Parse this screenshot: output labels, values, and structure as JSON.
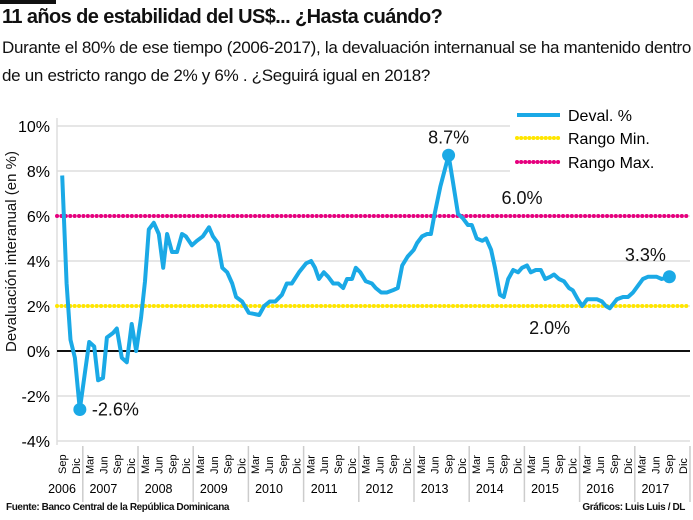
{
  "header": {
    "title": "11 años de estabilidad del US$... ¿Hasta cuándo?",
    "subtitle": "Durante el 80% de ese tiempo (2006-2017), la devaluación internanual se ha mantenido dentro de un estricto rango de 2% y 6% . ¿Seguirá igual en 2018?"
  },
  "footer": {
    "source": "Fuente: Banco Central de la República Dominicana",
    "credit": "Gráficos: Luis Luis / DL"
  },
  "colors": {
    "series": "#1aa9e6",
    "min": "#ffe600",
    "max": "#e6007e",
    "zero": "#111111",
    "grid": "#dddddd"
  },
  "chart_data": {
    "type": "line",
    "title": "",
    "ylabel": "Devaluación interanual (en %)",
    "xlabel": "",
    "ylim": [
      -4,
      10
    ],
    "yticks": [
      10,
      8,
      6,
      4,
      2,
      0,
      -2,
      -4
    ],
    "ytick_labels": [
      "10%",
      "8%",
      "6%",
      "4%",
      "2%",
      "0%",
      "-2%",
      "-4%"
    ],
    "grid": true,
    "legend_position": "top-right",
    "x_tick_labels": [
      "Sep",
      "Dic",
      "Mar",
      "Jun",
      "Sep",
      "Dic",
      "Mar",
      "Jun",
      "Sep",
      "Dic",
      "Mar",
      "Jun",
      "Sep",
      "Dic",
      "Mar",
      "Jun",
      "Sep",
      "Dic",
      "Mar",
      "Jun",
      "Sep",
      "Dic",
      "Mar",
      "Jun",
      "Sep",
      "Dic",
      "Mar",
      "Jun",
      "Sep",
      "Dic",
      "Mar",
      "Jun",
      "Sep",
      "Dic",
      "Mar",
      "Jun",
      "Sep",
      "Dic",
      "Mar",
      "Jun",
      "Sep",
      "Dic",
      "Mar",
      "Jun",
      "Sep",
      "Dic"
    ],
    "year_labels": [
      "2006",
      "2007",
      "2008",
      "2009",
      "2010",
      "2011",
      "2012",
      "2013",
      "2014",
      "2015",
      "2016",
      "2017"
    ],
    "series": [
      {
        "name": "Deval. %",
        "points": [
          [
            2006.67,
            7.8
          ],
          [
            2006.75,
            3.0
          ],
          [
            2006.82,
            0.5
          ],
          [
            2006.9,
            -0.3
          ],
          [
            2006.99,
            -2.6
          ],
          [
            2007.16,
            0.4
          ],
          [
            2007.25,
            0.2
          ],
          [
            2007.32,
            -1.3
          ],
          [
            2007.41,
            -1.2
          ],
          [
            2007.48,
            0.6
          ],
          [
            2007.59,
            0.8
          ],
          [
            2007.66,
            1.0
          ],
          [
            2007.75,
            -0.3
          ],
          [
            2007.84,
            -0.5
          ],
          [
            2007.93,
            1.2
          ],
          [
            2008.01,
            0.0
          ],
          [
            2008.1,
            1.5
          ],
          [
            2008.17,
            3.1
          ],
          [
            2008.24,
            5.4
          ],
          [
            2008.33,
            5.7
          ],
          [
            2008.42,
            5.2
          ],
          [
            2008.5,
            3.7
          ],
          [
            2008.57,
            5.2
          ],
          [
            2008.66,
            4.4
          ],
          [
            2008.75,
            4.4
          ],
          [
            2008.84,
            5.2
          ],
          [
            2008.91,
            5.1
          ],
          [
            2009.02,
            4.7
          ],
          [
            2009.11,
            4.9
          ],
          [
            2009.22,
            5.1
          ],
          [
            2009.33,
            5.5
          ],
          [
            2009.4,
            5.1
          ],
          [
            2009.49,
            4.8
          ],
          [
            2009.57,
            3.7
          ],
          [
            2009.66,
            3.5
          ],
          [
            2009.75,
            3.0
          ],
          [
            2009.82,
            2.4
          ],
          [
            2009.93,
            2.2
          ],
          [
            2010.05,
            1.7
          ],
          [
            2010.24,
            1.6
          ],
          [
            2010.33,
            2.0
          ],
          [
            2010.43,
            2.2
          ],
          [
            2010.53,
            2.2
          ],
          [
            2010.65,
            2.5
          ],
          [
            2010.74,
            3.0
          ],
          [
            2010.83,
            3.0
          ],
          [
            2010.96,
            3.5
          ],
          [
            2011.09,
            3.9
          ],
          [
            2011.18,
            4.0
          ],
          [
            2011.25,
            3.7
          ],
          [
            2011.32,
            3.2
          ],
          [
            2011.41,
            3.5
          ],
          [
            2011.49,
            3.3
          ],
          [
            2011.58,
            3.0
          ],
          [
            2011.67,
            3.0
          ],
          [
            2011.76,
            2.8
          ],
          [
            2011.83,
            3.2
          ],
          [
            2011.92,
            3.2
          ],
          [
            2011.99,
            3.7
          ],
          [
            2012.07,
            3.5
          ],
          [
            2012.17,
            3.1
          ],
          [
            2012.28,
            3.0
          ],
          [
            2012.35,
            2.8
          ],
          [
            2012.45,
            2.6
          ],
          [
            2012.55,
            2.6
          ],
          [
            2012.66,
            2.7
          ],
          [
            2012.75,
            2.8
          ],
          [
            2012.83,
            3.8
          ],
          [
            2012.93,
            4.2
          ],
          [
            2013.04,
            4.5
          ],
          [
            2013.1,
            4.8
          ],
          [
            2013.19,
            5.1
          ],
          [
            2013.28,
            5.2
          ],
          [
            2013.35,
            5.2
          ],
          [
            2013.41,
            6.0
          ],
          [
            2013.52,
            7.3
          ],
          [
            2013.67,
            8.7
          ],
          [
            2013.75,
            7.5
          ],
          [
            2013.84,
            6.1
          ],
          [
            2013.93,
            5.9
          ],
          [
            2014.02,
            5.6
          ],
          [
            2014.09,
            5.6
          ],
          [
            2014.18,
            5.0
          ],
          [
            2014.28,
            4.9
          ],
          [
            2014.35,
            5.0
          ],
          [
            2014.44,
            4.5
          ],
          [
            2014.51,
            3.7
          ],
          [
            2014.6,
            2.5
          ],
          [
            2014.67,
            2.4
          ],
          [
            2014.75,
            3.2
          ],
          [
            2014.84,
            3.6
          ],
          [
            2014.93,
            3.5
          ],
          [
            2015.0,
            3.7
          ],
          [
            2015.09,
            3.8
          ],
          [
            2015.16,
            3.5
          ],
          [
            2015.25,
            3.6
          ],
          [
            2015.34,
            3.6
          ],
          [
            2015.42,
            3.2
          ],
          [
            2015.51,
            3.3
          ],
          [
            2015.58,
            3.4
          ],
          [
            2015.67,
            3.2
          ],
          [
            2015.76,
            3.1
          ],
          [
            2015.85,
            2.8
          ],
          [
            2015.92,
            2.7
          ],
          [
            2016.01,
            2.3
          ],
          [
            2016.09,
            2.0
          ],
          [
            2016.18,
            2.3
          ],
          [
            2016.27,
            2.3
          ],
          [
            2016.36,
            2.3
          ],
          [
            2016.45,
            2.2
          ],
          [
            2016.52,
            2.0
          ],
          [
            2016.59,
            1.9
          ],
          [
            2016.72,
            2.3
          ],
          [
            2016.83,
            2.4
          ],
          [
            2016.92,
            2.4
          ],
          [
            2017.01,
            2.6
          ],
          [
            2017.1,
            2.9
          ],
          [
            2017.19,
            3.2
          ],
          [
            2017.28,
            3.3
          ],
          [
            2017.44,
            3.3
          ],
          [
            2017.53,
            3.2
          ],
          [
            2017.67,
            3.3
          ]
        ]
      },
      {
        "name": "Rango Min.",
        "value": 2.0
      },
      {
        "name": "Rango Max.",
        "value": 6.0
      }
    ],
    "annotations": [
      {
        "text": "8.7%",
        "x": 2013.67,
        "y": 8.7
      },
      {
        "text": "-2.6%",
        "x": 2006.99,
        "y": -2.6
      },
      {
        "text": "3.3%",
        "x": 2017.67,
        "y": 3.3
      },
      {
        "text": "6.0%",
        "x": 2015.0,
        "y": 6.0
      },
      {
        "text": "2.0%",
        "x": 2015.5,
        "y": 2.0
      }
    ]
  }
}
